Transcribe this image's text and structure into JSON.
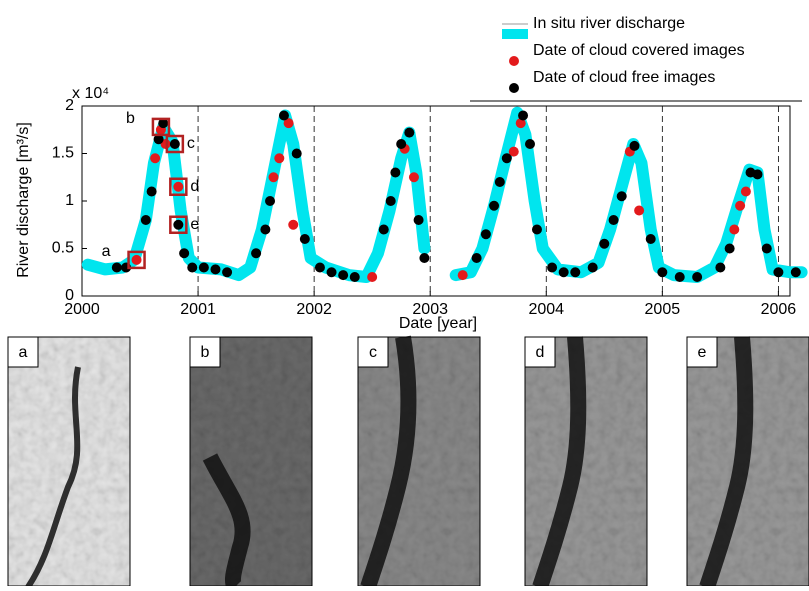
{
  "chart_data": {
    "type": "line",
    "ylabel": "River discharge [m³/s]",
    "y_multiplier": "x 10⁴",
    "xlabel": "Date [year]",
    "xlim": [
      2000,
      2006.1
    ],
    "xticks": [
      2000,
      2001,
      2002,
      2003,
      2004,
      2005,
      2006
    ],
    "ylim": [
      0,
      2
    ],
    "yticks": [
      0,
      0.5,
      1,
      1.5,
      2
    ],
    "grid": "dashed-vertical",
    "legend": "upper right",
    "line": {
      "name": "In situ river discharge",
      "color": "#00e5ee",
      "x": [
        2000.05,
        2000.2,
        2000.35,
        2000.45,
        2000.55,
        2000.62,
        2000.7,
        2000.78,
        2000.85,
        2000.92,
        2001.0,
        2001.2,
        2001.35,
        2001.45,
        2001.55,
        2001.65,
        2001.75,
        2001.82,
        2001.9,
        2001.97,
        2002.1,
        2002.3,
        2002.45,
        2002.55,
        2002.65,
        2002.75,
        2002.82,
        2002.88,
        2002.95,
        2003.1,
        2003.22,
        2003.35,
        2003.45,
        2003.55,
        2003.65,
        2003.75,
        2003.82,
        2003.9,
        2003.97,
        2004.1,
        2004.3,
        2004.45,
        2004.55,
        2004.65,
        2004.75,
        2004.82,
        2004.9,
        2004.97,
        2005.1,
        2005.3,
        2005.45,
        2005.55,
        2005.65,
        2005.75,
        2005.82,
        2005.88,
        2005.95,
        2006.1,
        2006.2
      ],
      "values": [
        0.33,
        0.28,
        0.3,
        0.38,
        0.8,
        1.4,
        1.78,
        1.62,
        0.9,
        0.4,
        0.3,
        0.28,
        0.22,
        0.3,
        0.7,
        1.3,
        1.9,
        1.6,
        0.9,
        0.4,
        0.3,
        0.22,
        0.2,
        0.45,
        0.9,
        1.45,
        1.72,
        1.3,
        0.5,
        null,
        0.22,
        0.25,
        0.5,
        0.95,
        1.45,
        1.93,
        1.7,
        1.0,
        0.5,
        0.28,
        0.25,
        0.35,
        0.7,
        1.15,
        1.6,
        1.4,
        0.7,
        0.3,
        0.22,
        0.2,
        0.3,
        0.55,
        0.95,
        1.33,
        1.3,
        0.7,
        0.28,
        0.25,
        0.25
      ]
    },
    "series": [
      {
        "name": "Date of cloud covered images",
        "color": "#e31a1c",
        "x": [
          2000.47,
          2000.63,
          2000.68,
          2000.72,
          2000.83,
          2001.65,
          2001.7,
          2001.78,
          2001.82,
          2002.5,
          2002.78,
          2002.86,
          2003.28,
          2003.72,
          2003.78,
          2004.72,
          2004.8,
          2005.62,
          2005.67,
          2005.72
        ],
        "values": [
          0.38,
          1.45,
          1.75,
          1.6,
          1.15,
          1.25,
          1.45,
          1.82,
          0.75,
          0.2,
          1.55,
          1.25,
          0.22,
          1.52,
          1.82,
          1.52,
          0.9,
          0.7,
          0.95,
          1.1
        ]
      },
      {
        "name": "Date of cloud free images",
        "color": "#000000",
        "x": [
          2000.3,
          2000.38,
          2000.55,
          2000.6,
          2000.66,
          2000.7,
          2000.8,
          2000.83,
          2000.88,
          2000.95,
          2001.05,
          2001.15,
          2001.25,
          2001.5,
          2001.58,
          2001.62,
          2001.74,
          2001.85,
          2001.92,
          2002.05,
          2002.15,
          2002.25,
          2002.35,
          2002.6,
          2002.66,
          2002.7,
          2002.75,
          2002.82,
          2002.9,
          2002.95,
          2003.4,
          2003.48,
          2003.55,
          2003.6,
          2003.66,
          2003.8,
          2003.86,
          2003.92,
          2004.05,
          2004.15,
          2004.25,
          2004.4,
          2004.5,
          2004.58,
          2004.65,
          2004.76,
          2004.9,
          2005.0,
          2005.15,
          2005.3,
          2005.5,
          2005.58,
          2005.76,
          2005.82,
          2005.9,
          2006.0,
          2006.15
        ],
        "values": [
          0.3,
          0.3,
          0.8,
          1.1,
          1.65,
          1.82,
          1.6,
          0.75,
          0.45,
          0.3,
          0.3,
          0.28,
          0.25,
          0.45,
          0.7,
          1.0,
          1.9,
          1.5,
          0.6,
          0.3,
          0.25,
          0.22,
          0.2,
          0.7,
          1.0,
          1.3,
          1.6,
          1.72,
          0.8,
          0.4,
          0.4,
          0.65,
          0.95,
          1.2,
          1.45,
          1.9,
          1.6,
          0.7,
          0.3,
          0.25,
          0.25,
          0.3,
          0.55,
          0.8,
          1.05,
          1.58,
          0.6,
          0.25,
          0.2,
          0.2,
          0.3,
          0.5,
          1.3,
          1.28,
          0.5,
          0.25,
          0.25
        ]
      }
    ],
    "annotations": [
      {
        "text": "a",
        "x": 2000.47,
        "y": 0.38,
        "side": "left"
      },
      {
        "text": "b",
        "x": 2000.68,
        "y": 1.78,
        "side": "left"
      },
      {
        "text": "c",
        "x": 2000.8,
        "y": 1.6,
        "side": "right"
      },
      {
        "text": "d",
        "x": 2000.83,
        "y": 1.15,
        "side": "right"
      },
      {
        "text": "e",
        "x": 2000.83,
        "y": 0.75,
        "side": "right"
      }
    ]
  },
  "panels": [
    "a",
    "b",
    "c",
    "d",
    "e"
  ]
}
